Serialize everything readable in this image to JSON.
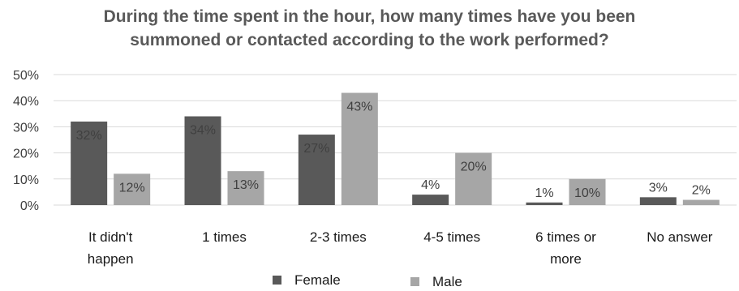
{
  "chart_data": {
    "type": "bar",
    "title_lines": [
      "During the time spent in the hour, how many times have you been",
      "summoned or contacted according to the work performed?"
    ],
    "categories": [
      [
        "It didn't",
        "happen"
      ],
      [
        "1 times"
      ],
      [
        "2-3 times"
      ],
      [
        "4-5 times"
      ],
      [
        "6 times or",
        "more"
      ],
      [
        "No answer"
      ]
    ],
    "series": [
      {
        "name": "Female",
        "color": "#595959",
        "values": [
          32,
          34,
          27,
          4,
          1,
          3
        ],
        "labels": [
          "32%",
          "34%",
          "27%",
          "4%",
          "1%",
          "3%"
        ]
      },
      {
        "name": "Male",
        "color": "#a6a6a6",
        "values": [
          12,
          13,
          43,
          20,
          10,
          2
        ],
        "labels": [
          "12%",
          "13%",
          "43%",
          "20%",
          "10%",
          "2%"
        ]
      }
    ],
    "yticks": [
      "0%",
      "10%",
      "20%",
      "30%",
      "40%",
      "50%"
    ],
    "ylim": [
      0,
      50
    ],
    "grid": true,
    "legend_position": "bottom"
  }
}
